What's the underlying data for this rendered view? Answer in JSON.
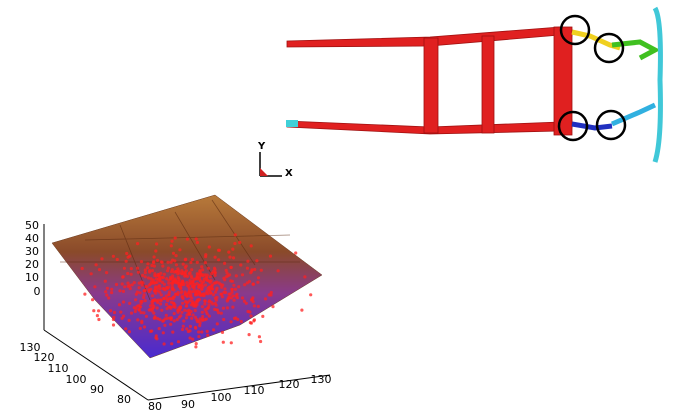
{
  "frame_view": {
    "axis_triad": {
      "y_label": "Y",
      "x_label": "X"
    }
  },
  "surface_plot": {
    "z_ticks": [
      "50",
      "40",
      "30",
      "20",
      "10",
      "0"
    ],
    "y_ticks": [
      "130",
      "120",
      "110",
      "100",
      "90",
      "80"
    ],
    "x_ticks": [
      "80",
      "90",
      "100",
      "110",
      "120",
      "130"
    ]
  }
}
